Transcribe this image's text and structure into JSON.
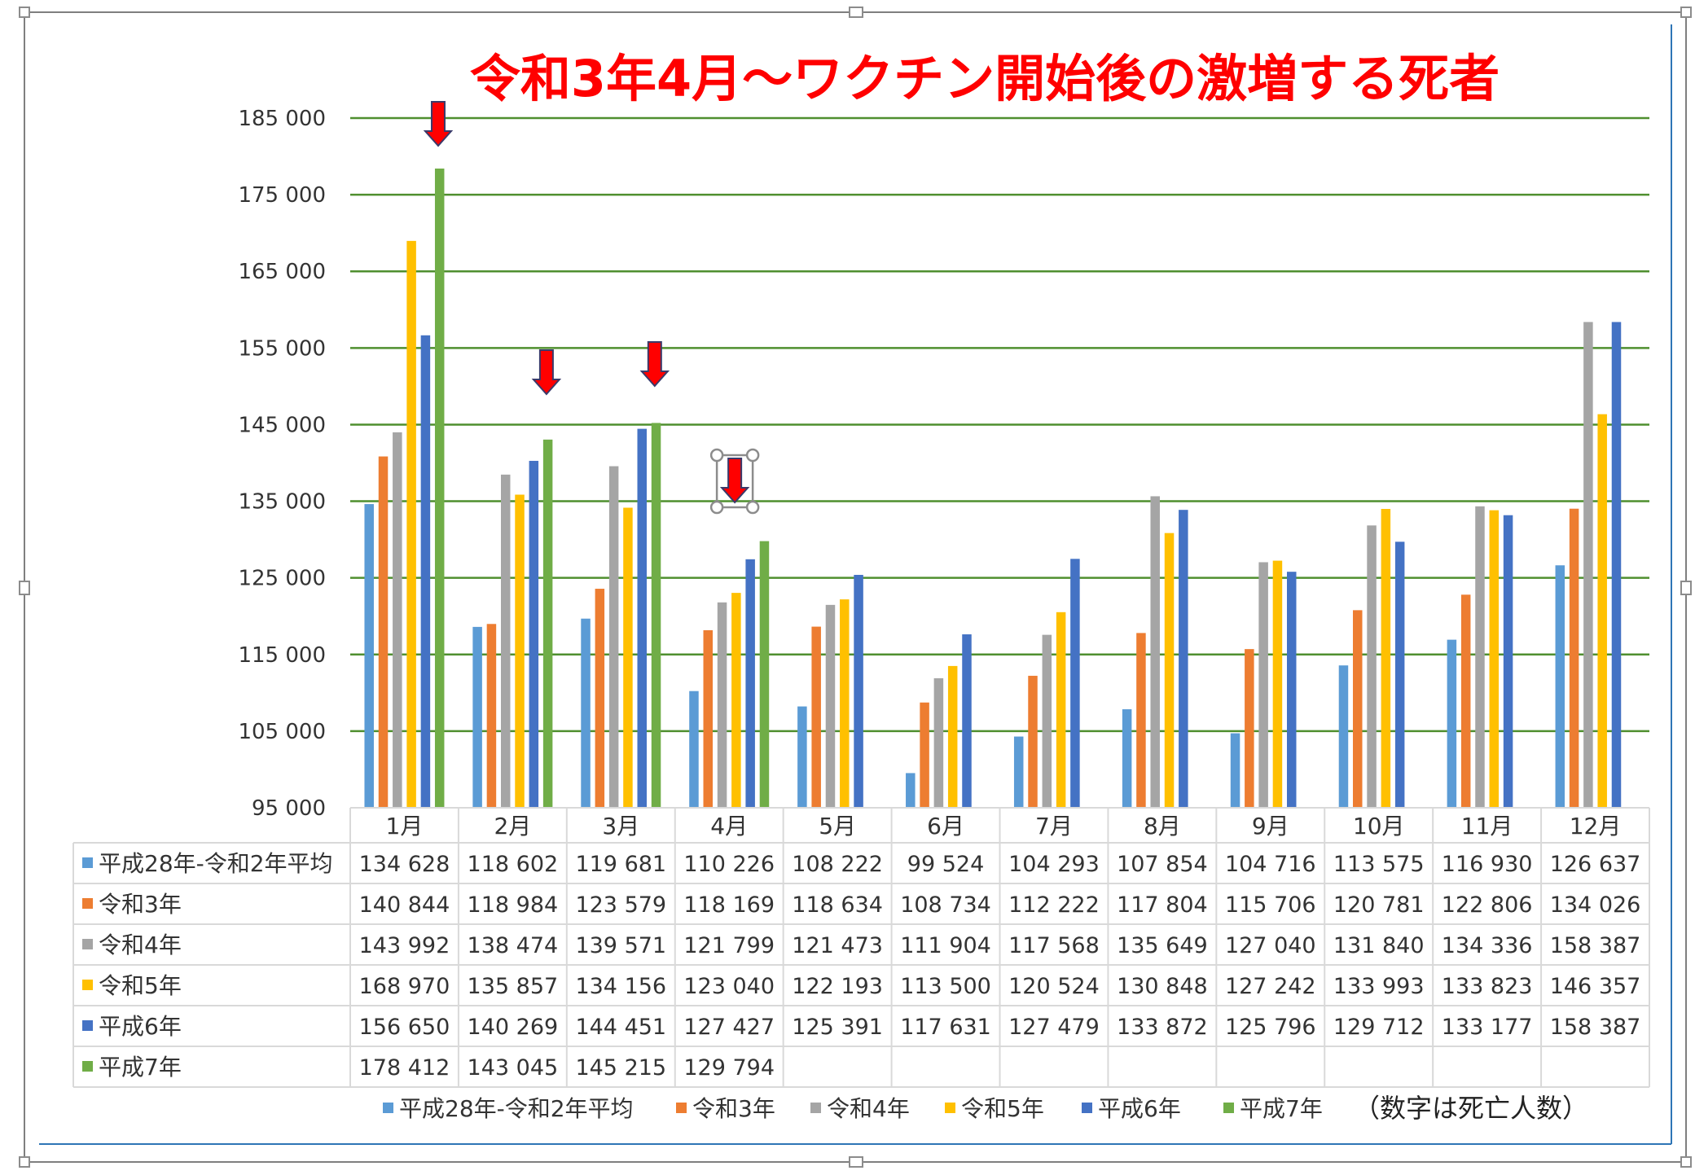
{
  "chart_data": {
    "type": "bar",
    "title": "令和3年4月～ワクチン開始後の激増する死者",
    "categories": [
      "1月",
      "2月",
      "3月",
      "4月",
      "5月",
      "6月",
      "7月",
      "8月",
      "9月",
      "10月",
      "11月",
      "12月"
    ],
    "ylim": [
      95000,
      185000
    ],
    "yticks": [
      {
        "value": 95000,
        "label": "95 000"
      },
      {
        "value": 105000,
        "label": "105 000"
      },
      {
        "value": 115000,
        "label": "115 000"
      },
      {
        "value": 125000,
        "label": "125 000"
      },
      {
        "value": 135000,
        "label": "135 000"
      },
      {
        "value": 145000,
        "label": "145 000"
      },
      {
        "value": 155000,
        "label": "155 000"
      },
      {
        "value": 165000,
        "label": "165 000"
      },
      {
        "value": 175000,
        "label": "175 000"
      },
      {
        "value": 185000,
        "label": "185 000"
      }
    ],
    "grid": true,
    "legend_position": "bottom",
    "note": "（数字は死亡人数）",
    "series": [
      {
        "name": "平成28年-令和2年平均",
        "color": "#5b9bd5",
        "values": [
          134628,
          118602,
          119681,
          110226,
          108222,
          99524,
          104293,
          107854,
          104716,
          113575,
          116930,
          126637
        ],
        "labels": [
          "134 628",
          "118 602",
          "119 681",
          "110 226",
          "108 222",
          "99 524",
          "104 293",
          "107 854",
          "104 716",
          "113 575",
          "116 930",
          "126 637"
        ]
      },
      {
        "name": "令和3年",
        "color": "#ed7d31",
        "values": [
          140844,
          118984,
          123579,
          118169,
          118634,
          108734,
          112222,
          117804,
          115706,
          120781,
          122806,
          134026
        ],
        "labels": [
          "140 844",
          "118 984",
          "123 579",
          "118 169",
          "118 634",
          "108 734",
          "112 222",
          "117 804",
          "115 706",
          "120 781",
          "122 806",
          "134 026"
        ]
      },
      {
        "name": "令和4年",
        "color": "#a5a5a5",
        "values": [
          143992,
          138474,
          139571,
          121799,
          121473,
          111904,
          117568,
          135649,
          127040,
          131840,
          134336,
          158387
        ],
        "labels": [
          "143 992",
          "138 474",
          "139 571",
          "121 799",
          "121 473",
          "111 904",
          "117 568",
          "135 649",
          "127 040",
          "131 840",
          "134 336",
          "158 387"
        ]
      },
      {
        "name": "令和5年",
        "color": "#ffc000",
        "values": [
          168970,
          135857,
          134156,
          123040,
          122193,
          113500,
          120524,
          130848,
          127242,
          133993,
          133823,
          146357
        ],
        "labels": [
          "168 970",
          "135 857",
          "134 156",
          "123 040",
          "122 193",
          "113 500",
          "120 524",
          "130 848",
          "127 242",
          "133 993",
          "133 823",
          "146 357"
        ]
      },
      {
        "name": "平成6年",
        "color": "#4472c4",
        "values": [
          156650,
          140269,
          144451,
          127427,
          125391,
          117631,
          127479,
          133872,
          125796,
          129712,
          133177,
          158387
        ],
        "labels": [
          "156 650",
          "140 269",
          "144 451",
          "127 427",
          "125 391",
          "117 631",
          "127 479",
          "133 872",
          "125 796",
          "129 712",
          "133 177",
          "158 387"
        ]
      },
      {
        "name": "平成7年",
        "color": "#70ad47",
        "values": [
          178412,
          143045,
          145215,
          129794,
          null,
          null,
          null,
          null,
          null,
          null,
          null,
          null
        ],
        "labels": [
          "178 412",
          "143 045",
          "145 215",
          "129 794",
          "",
          "",
          "",
          "",
          "",
          "",
          "",
          ""
        ]
      }
    ],
    "annotations": [
      {
        "type": "down-arrow",
        "color": "#ff0000",
        "category": "1月"
      },
      {
        "type": "down-arrow",
        "color": "#ff0000",
        "category": "2月"
      },
      {
        "type": "down-arrow",
        "color": "#ff0000",
        "category": "3月"
      },
      {
        "type": "down-arrow",
        "color": "#ff0000",
        "category": "4月",
        "selected": true
      }
    ]
  }
}
